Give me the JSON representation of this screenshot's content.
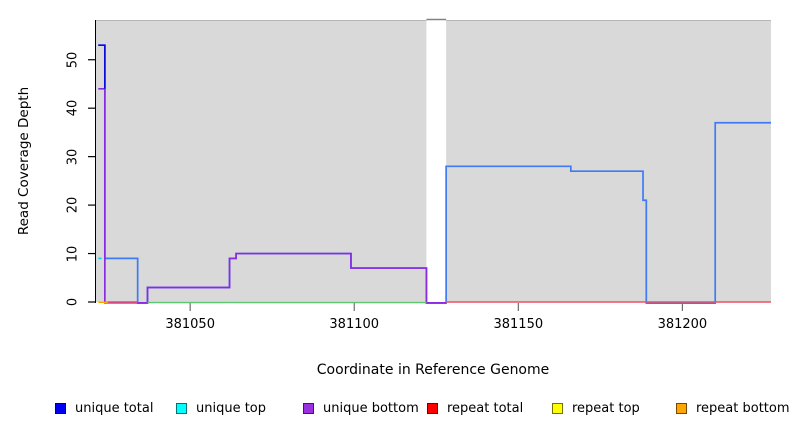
{
  "figure": {
    "x_axis_label": "Coordinate in Reference Genome",
    "y_axis_label": "Read Coverage Depth"
  },
  "chart_data": {
    "type": "line",
    "subtype": "step-coverage-plot",
    "title": "",
    "xlabel": "Coordinate in Reference Genome",
    "ylabel": "Read Coverage Depth",
    "xlim": [
      381021,
      381227
    ],
    "ylim": [
      0,
      58.2
    ],
    "grid": false,
    "plot_bg_color": "#d9d9d9",
    "gap_region": {
      "start": 381122,
      "end": 381128,
      "color": "#ffffff"
    },
    "x_ticks": [
      {
        "label": "381050",
        "value": 381050
      },
      {
        "label": "381100",
        "value": 381100
      },
      {
        "label": "381150",
        "value": 381150
      },
      {
        "label": "381200",
        "value": 381200
      }
    ],
    "y_ticks": [
      {
        "label": "0",
        "value": 0
      },
      {
        "label": "10",
        "value": 10
      },
      {
        "label": "20",
        "value": 20
      },
      {
        "label": "30",
        "value": 30
      },
      {
        "label": "40",
        "value": 40
      },
      {
        "label": "50",
        "value": 50
      }
    ],
    "series": [
      {
        "name": "unique total",
        "color": "#3e7bf5",
        "zero_offset": 1.2,
        "end": 381227,
        "points": [
          [
            381022,
            53
          ],
          [
            381024,
            9
          ],
          [
            381034,
            0
          ],
          [
            381037,
            3
          ],
          [
            381062,
            9
          ],
          [
            381064,
            10
          ],
          [
            381099,
            7
          ],
          [
            381122,
            0
          ],
          [
            381128,
            28
          ],
          [
            381166,
            27
          ],
          [
            381188,
            21
          ],
          [
            381189,
            0
          ],
          [
            381210,
            37
          ]
        ]
      },
      {
        "name": "unique bottom",
        "color": "#8a2be2",
        "zero_offset": 0.8,
        "end": 381128,
        "points": [
          [
            381022,
            44
          ],
          [
            381024,
            0
          ],
          [
            381037,
            3
          ],
          [
            381062,
            9
          ],
          [
            381064,
            10
          ],
          [
            381099,
            7
          ],
          [
            381122,
            0
          ]
        ]
      },
      {
        "name": "unique total start spike",
        "color": "#0b0bdf",
        "zero_offset": 0,
        "end": 381024,
        "points": [
          [
            381022,
            53
          ],
          [
            381024,
            44
          ]
        ]
      },
      {
        "name": "unique top",
        "color": "#00dde8",
        "zero_offset": 0,
        "end": 381023,
        "points": [
          [
            381022,
            9
          ]
        ]
      }
    ],
    "baselines": [
      {
        "name": "repeat total",
        "color": "#ee5064",
        "y_value": 0,
        "y_offset": 0,
        "segments": [
          [
            381024,
            381034
          ],
          [
            381128,
            381227
          ]
        ]
      },
      {
        "name": "top strands zero baseline",
        "color": "#5ec66e",
        "y_value": 0,
        "y_offset": 0.6,
        "segments": [
          [
            381037,
            381122
          ]
        ]
      },
      {
        "name": "repeat bottom",
        "color": "#ffa500",
        "y_value": 0,
        "y_offset": 0.3,
        "segments": [
          [
            381022,
            381025
          ]
        ]
      }
    ],
    "legend": [
      {
        "label": "unique total",
        "color": "#0000f5"
      },
      {
        "label": "unique top",
        "color": "#00ffff"
      },
      {
        "label": "unique bottom",
        "color": "#9a30e0"
      },
      {
        "label": "repeat total",
        "color": "#ff0000"
      },
      {
        "label": "repeat top",
        "color": "#ffff00"
      },
      {
        "label": "repeat bottom",
        "color": "#ffa500"
      }
    ],
    "legend_position": "bottom"
  }
}
